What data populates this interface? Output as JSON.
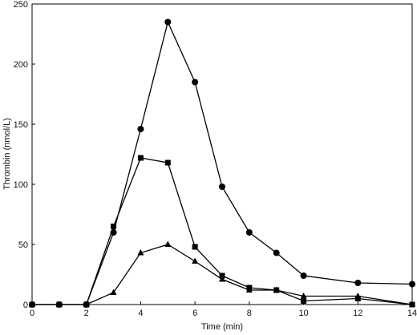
{
  "chart_data": {
    "type": "line",
    "title": "",
    "xlabel": "Time (min)",
    "ylabel": "Thrombin (nmol/L)",
    "xlim": [
      0,
      14
    ],
    "ylim": [
      0,
      250
    ],
    "xticks": [
      0,
      2,
      4,
      6,
      8,
      10,
      12,
      14
    ],
    "yticks": [
      0,
      50,
      100,
      150,
      200,
      250
    ],
    "grid": false,
    "legend": "none",
    "series": [
      {
        "marker": "circle",
        "color": "#000000",
        "points": [
          [
            0,
            0
          ],
          [
            1,
            0
          ],
          [
            2,
            0
          ],
          [
            3,
            60
          ],
          [
            4,
            146
          ],
          [
            5,
            235
          ],
          [
            6,
            185
          ],
          [
            7,
            98
          ],
          [
            8,
            60
          ],
          [
            9,
            43
          ],
          [
            10,
            24
          ],
          [
            12,
            18
          ],
          [
            14,
            17
          ]
        ]
      },
      {
        "marker": "square",
        "color": "#000000",
        "points": [
          [
            0,
            0
          ],
          [
            1,
            0
          ],
          [
            2,
            0
          ],
          [
            3,
            65
          ],
          [
            4,
            122
          ],
          [
            5,
            118
          ],
          [
            6,
            48
          ],
          [
            7,
            24
          ],
          [
            8,
            14
          ],
          [
            9,
            12
          ],
          [
            10,
            3
          ],
          [
            12,
            5
          ],
          [
            14,
            0
          ]
        ]
      },
      {
        "marker": "triangle",
        "color": "#000000",
        "points": [
          [
            0,
            0
          ],
          [
            1,
            0
          ],
          [
            2,
            0
          ],
          [
            3,
            10
          ],
          [
            4,
            43
          ],
          [
            5,
            50
          ],
          [
            6,
            36
          ],
          [
            7,
            21
          ],
          [
            8,
            12
          ],
          [
            9,
            12
          ],
          [
            10,
            7
          ],
          [
            12,
            7
          ],
          [
            14,
            0
          ]
        ]
      }
    ]
  }
}
